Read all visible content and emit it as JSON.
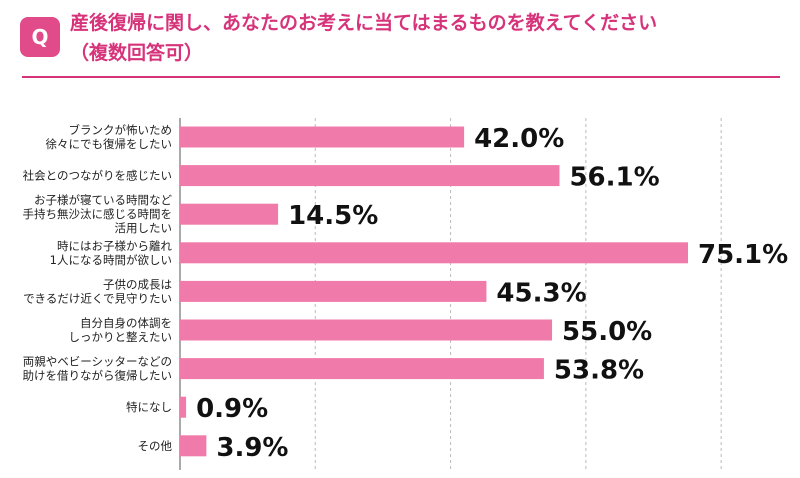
{
  "header": {
    "badge": "Q",
    "title_line1": "産後復帰に関し、あなたのお考えに当てはまるものを教えてください",
    "title_line2": "（複数回答可）"
  },
  "colors": {
    "bar": "#f07aa9",
    "accent": "#d6337a",
    "badge": "#e24b8a",
    "grid": "#bbbbbb"
  },
  "chart_data": {
    "type": "bar",
    "orientation": "horizontal",
    "title": "産後復帰に関し、あなたのお考えに当てはまるものを教えてください（複数回答可）",
    "xlabel": "",
    "ylabel": "",
    "xlim": [
      0,
      100
    ],
    "grid": true,
    "legend": "none",
    "categories": [
      [
        "ブランクが怖いため",
        "徐々にでも復帰をしたい"
      ],
      [
        "社会とのつながりを感じたい"
      ],
      [
        "お子様が寝ている時間など",
        "手持ち無沙汰に感じる時間を",
        "活用したい"
      ],
      [
        "時にはお子様から離れ",
        "1人になる時間が欲しい"
      ],
      [
        "子供の成長は",
        "できるだけ近くで見守りたい"
      ],
      [
        "自分自身の体調を",
        "しっかりと整えたい"
      ],
      [
        "両親やベビーシッターなどの",
        "助けを借りながら復帰したい"
      ],
      [
        "特になし"
      ],
      [
        "その他"
      ]
    ],
    "values": [
      42.0,
      56.1,
      14.5,
      75.1,
      45.3,
      55.0,
      53.8,
      0.9,
      3.9
    ],
    "value_labels": [
      "42.0%",
      "56.1%",
      "14.5%",
      "75.1%",
      "45.3%",
      "55.0%",
      "53.8%",
      "0.9%",
      "3.9%"
    ]
  }
}
